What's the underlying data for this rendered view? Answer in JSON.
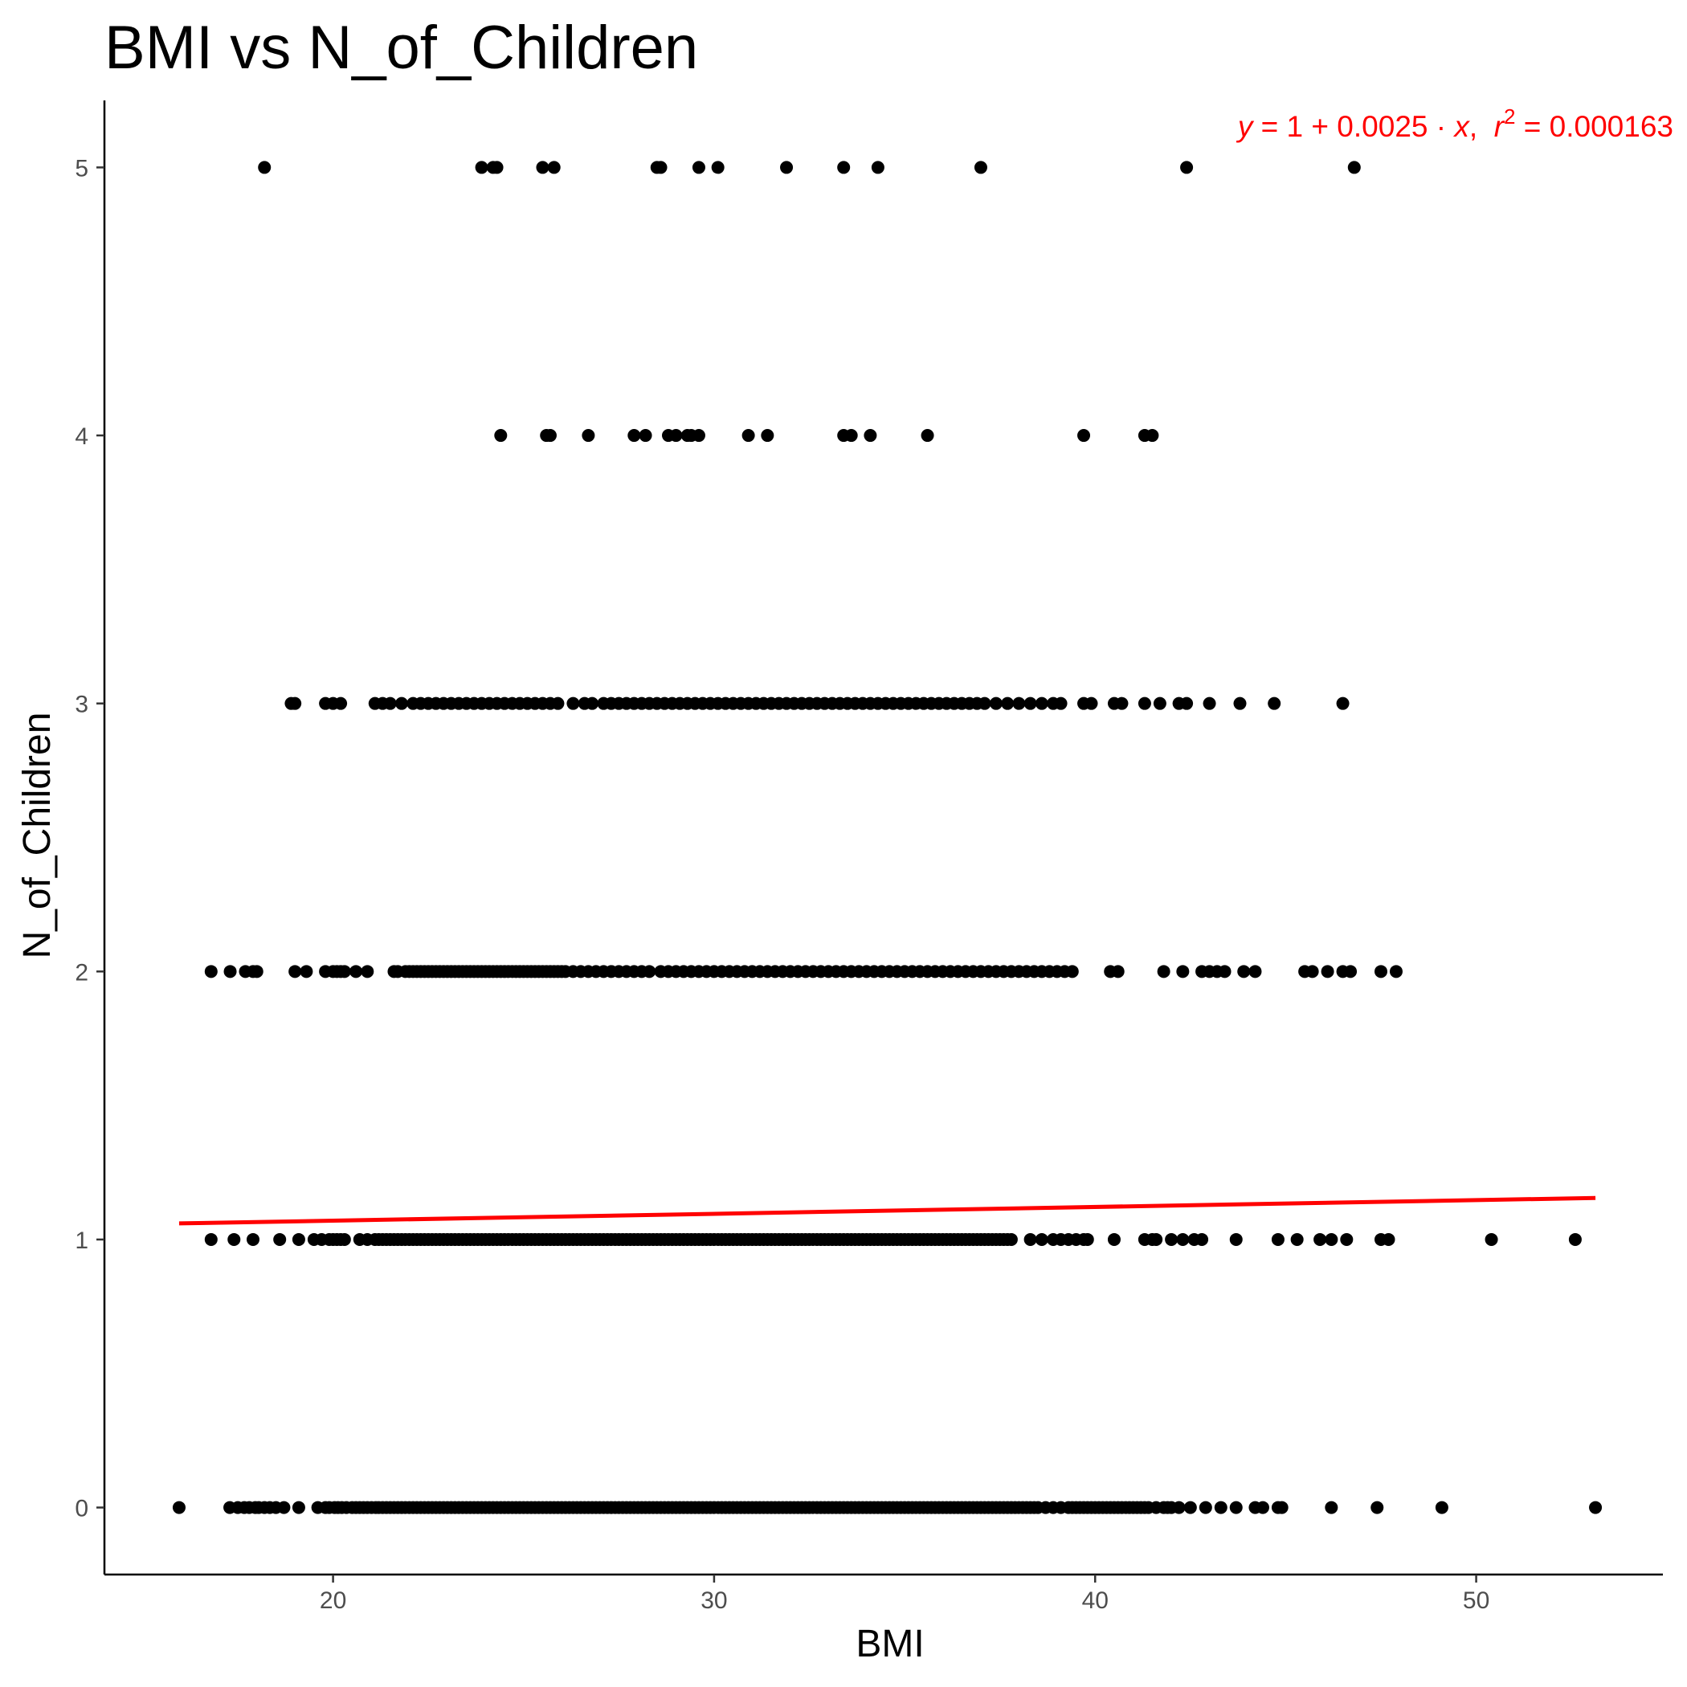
{
  "chart_data": {
    "type": "scatter",
    "title": "BMI vs N_of_Children",
    "xlabel": "BMI",
    "ylabel": "N_of_Children",
    "xlim": [
      14,
      54.9
    ],
    "ylim": [
      -0.25,
      5.25
    ],
    "x_ticks": [
      20,
      30,
      40,
      50
    ],
    "y_ticks": [
      0,
      1,
      2,
      3,
      4,
      5
    ],
    "x_tick_labels": [
      "20",
      "30",
      "40",
      "50"
    ],
    "y_tick_labels": [
      "0",
      "1",
      "2",
      "3",
      "4",
      "5"
    ],
    "grid": false,
    "point_color": "#000000",
    "regression": {
      "intercept": 1.0,
      "slope": 0.0025,
      "x_range": [
        15.96,
        53.13
      ],
      "y_range": [
        1.06,
        1.155
      ],
      "color": "#ff0000"
    },
    "equation": {
      "y": "y",
      "eq1": " = 1 + 0.0025 · ",
      "x": "x",
      "sep": ",  ",
      "r": "r",
      "sup": "2",
      "eq2": " = 0.000163",
      "color": "#ff0000"
    },
    "points": {
      "0": [
        15.96,
        17.29,
        17.5,
        17.67,
        17.8,
        17.96,
        18.05,
        18.2,
        18.34,
        18.5,
        18.71,
        19.1,
        19.6,
        19.8,
        19.9,
        20.04,
        20.13,
        20.23,
        20.35,
        20.5,
        20.6,
        20.7,
        20.8,
        20.9,
        21.01,
        21.12,
        21.2,
        21.3,
        21.4,
        21.5,
        21.6,
        21.7,
        21.8,
        21.9,
        22.0,
        22.1,
        22.2,
        22.3,
        22.4,
        22.5,
        22.6,
        22.7,
        22.8,
        22.9,
        23.0,
        23.1,
        23.2,
        23.3,
        23.4,
        23.5,
        23.6,
        23.7,
        23.8,
        23.9,
        24.0,
        24.1,
        24.2,
        24.3,
        24.4,
        24.5,
        24.6,
        24.7,
        24.8,
        24.9,
        25.0,
        25.1,
        25.2,
        25.3,
        25.4,
        25.5,
        25.6,
        25.7,
        25.8,
        25.9,
        26.0,
        26.1,
        26.2,
        26.3,
        26.4,
        26.5,
        26.6,
        26.7,
        26.8,
        26.9,
        27.0,
        27.1,
        27.2,
        27.3,
        27.4,
        27.5,
        27.6,
        27.7,
        27.8,
        27.9,
        28.0,
        28.1,
        28.2,
        28.3,
        28.4,
        28.5,
        28.6,
        28.7,
        28.8,
        28.9,
        29.0,
        29.1,
        29.2,
        29.3,
        29.4,
        29.5,
        29.6,
        29.7,
        29.8,
        29.9,
        30.0,
        30.1,
        30.2,
        30.3,
        30.4,
        30.5,
        30.6,
        30.7,
        30.8,
        30.9,
        31.0,
        31.1,
        31.2,
        31.3,
        31.4,
        31.5,
        31.6,
        31.7,
        31.8,
        31.9,
        32.0,
        32.1,
        32.2,
        32.3,
        32.4,
        32.5,
        32.6,
        32.7,
        32.8,
        32.9,
        33.0,
        33.1,
        33.2,
        33.3,
        33.4,
        33.5,
        33.6,
        33.7,
        33.8,
        33.9,
        34.0,
        34.1,
        34.2,
        34.3,
        34.4,
        34.5,
        34.6,
        34.7,
        34.8,
        34.9,
        35.0,
        35.1,
        35.2,
        35.3,
        35.4,
        35.5,
        35.6,
        35.7,
        35.8,
        35.9,
        36.0,
        36.1,
        36.2,
        36.3,
        36.4,
        36.5,
        36.6,
        36.7,
        36.8,
        36.9,
        37.0,
        37.1,
        37.2,
        37.3,
        37.4,
        37.5,
        37.6,
        37.7,
        37.8,
        37.9,
        38.0,
        38.1,
        38.2,
        38.3,
        38.4,
        38.5,
        38.7,
        38.9,
        39.1,
        39.3,
        39.4,
        39.5,
        39.6,
        39.7,
        39.8,
        39.9,
        40.0,
        40.1,
        40.2,
        40.3,
        40.4,
        40.5,
        40.6,
        40.7,
        40.8,
        40.9,
        41.0,
        41.1,
        41.2,
        41.3,
        41.4,
        41.6,
        41.8,
        41.9,
        42.0,
        42.2,
        42.5,
        42.9,
        43.3,
        43.7,
        44.2,
        44.4,
        44.8,
        44.9,
        46.2,
        47.4,
        49.1,
        53.13
      ],
      "1": [
        16.8,
        17.4,
        17.9,
        18.6,
        19.1,
        19.5,
        19.7,
        19.9,
        20.0,
        20.1,
        20.2,
        20.3,
        20.7,
        20.9,
        21.1,
        21.2,
        21.3,
        21.4,
        21.5,
        21.6,
        21.7,
        21.8,
        21.9,
        22.0,
        22.1,
        22.2,
        22.3,
        22.4,
        22.5,
        22.6,
        22.7,
        22.8,
        22.9,
        23.0,
        23.1,
        23.2,
        23.3,
        23.4,
        23.5,
        23.6,
        23.7,
        23.8,
        23.9,
        24.0,
        24.1,
        24.2,
        24.3,
        24.4,
        24.5,
        24.6,
        24.7,
        24.8,
        24.9,
        25.0,
        25.1,
        25.2,
        25.3,
        25.4,
        25.5,
        25.6,
        25.7,
        25.8,
        25.9,
        26.0,
        26.1,
        26.2,
        26.3,
        26.4,
        26.5,
        26.6,
        26.7,
        26.8,
        26.9,
        27.0,
        27.1,
        27.2,
        27.3,
        27.4,
        27.5,
        27.6,
        27.7,
        27.8,
        27.9,
        28.0,
        28.1,
        28.2,
        28.3,
        28.4,
        28.5,
        28.6,
        28.7,
        28.8,
        28.9,
        29.0,
        29.1,
        29.2,
        29.3,
        29.4,
        29.5,
        29.6,
        29.7,
        29.8,
        29.9,
        30.0,
        30.1,
        30.2,
        30.3,
        30.4,
        30.5,
        30.6,
        30.7,
        30.8,
        30.9,
        31.0,
        31.1,
        31.2,
        31.3,
        31.4,
        31.5,
        31.6,
        31.7,
        31.8,
        31.9,
        32.0,
        32.1,
        32.2,
        32.3,
        32.4,
        32.5,
        32.6,
        32.7,
        32.8,
        32.9,
        33.0,
        33.1,
        33.2,
        33.3,
        33.4,
        33.5,
        33.6,
        33.7,
        33.8,
        33.9,
        34.0,
        34.1,
        34.2,
        34.3,
        34.4,
        34.5,
        34.6,
        34.7,
        34.8,
        34.9,
        35.0,
        35.1,
        35.2,
        35.3,
        35.4,
        35.5,
        35.6,
        35.7,
        35.8,
        35.9,
        36.0,
        36.1,
        36.2,
        36.3,
        36.4,
        36.5,
        36.6,
        36.7,
        36.8,
        36.9,
        37.0,
        37.1,
        37.2,
        37.3,
        37.4,
        37.5,
        37.6,
        37.7,
        37.8,
        38.3,
        38.6,
        38.9,
        39.1,
        39.3,
        39.5,
        39.7,
        39.8,
        40.5,
        41.3,
        41.5,
        41.6,
        42.0,
        42.3,
        42.6,
        42.8,
        43.7,
        44.8,
        45.3,
        45.9,
        46.2,
        46.6,
        47.5,
        47.7,
        50.4,
        52.6
      ],
      "2": [
        16.8,
        17.3,
        17.7,
        17.9,
        18.0,
        19.0,
        19.3,
        19.8,
        20.0,
        20.1,
        20.2,
        20.3,
        20.6,
        20.9,
        21.6,
        21.7,
        21.9,
        22.0,
        22.1,
        22.2,
        22.3,
        22.4,
        22.5,
        22.6,
        22.7,
        22.8,
        22.9,
        23.0,
        23.1,
        23.2,
        23.3,
        23.4,
        23.5,
        23.6,
        23.7,
        23.8,
        23.9,
        24.0,
        24.1,
        24.2,
        24.3,
        24.4,
        24.5,
        24.6,
        24.7,
        24.8,
        24.9,
        25.0,
        25.1,
        25.2,
        25.3,
        25.4,
        25.5,
        25.6,
        25.7,
        25.8,
        25.9,
        26.0,
        26.1,
        26.3,
        26.5,
        26.7,
        26.9,
        27.1,
        27.3,
        27.5,
        27.7,
        27.9,
        28.1,
        28.3,
        28.6,
        28.8,
        29.0,
        29.2,
        29.4,
        29.6,
        29.8,
        30.0,
        30.2,
        30.4,
        30.6,
        30.8,
        31.0,
        31.2,
        31.4,
        31.6,
        31.8,
        32.0,
        32.2,
        32.4,
        32.6,
        32.8,
        33.0,
        33.2,
        33.4,
        33.6,
        33.8,
        34.0,
        34.2,
        34.4,
        34.6,
        34.8,
        35.0,
        35.2,
        35.4,
        35.6,
        35.8,
        36.0,
        36.2,
        36.4,
        36.6,
        36.8,
        37.0,
        37.2,
        37.4,
        37.6,
        37.8,
        38.0,
        38.2,
        38.4,
        38.6,
        38.8,
        39.0,
        39.2,
        39.4,
        40.4,
        40.6,
        41.8,
        42.3,
        42.8,
        43.0,
        43.2,
        43.4,
        43.9,
        44.2,
        45.5,
        45.7,
        46.1,
        46.5,
        46.7,
        47.5,
        47.9
      ],
      "3": [
        18.9,
        19.0,
        19.8,
        20.0,
        20.2,
        21.1,
        21.3,
        21.5,
        21.8,
        22.1,
        22.3,
        22.5,
        22.7,
        22.9,
        23.1,
        23.3,
        23.5,
        23.7,
        23.9,
        24.1,
        24.3,
        24.5,
        24.7,
        24.9,
        25.1,
        25.3,
        25.5,
        25.7,
        25.9,
        26.3,
        26.6,
        26.8,
        27.1,
        27.3,
        27.5,
        27.7,
        27.9,
        28.1,
        28.3,
        28.5,
        28.7,
        28.9,
        29.1,
        29.3,
        29.5,
        29.7,
        29.9,
        30.1,
        30.3,
        30.5,
        30.7,
        30.9,
        31.1,
        31.3,
        31.5,
        31.7,
        31.9,
        32.1,
        32.3,
        32.5,
        32.7,
        32.9,
        33.1,
        33.3,
        33.5,
        33.7,
        33.9,
        34.1,
        34.3,
        34.5,
        34.7,
        34.9,
        35.1,
        35.3,
        35.5,
        35.7,
        35.9,
        36.1,
        36.3,
        36.5,
        36.7,
        36.9,
        37.1,
        37.4,
        37.7,
        38.0,
        38.3,
        38.6,
        38.9,
        39.1,
        39.7,
        39.9,
        40.5,
        40.7,
        41.3,
        41.7,
        42.2,
        42.4,
        43.0,
        43.8,
        44.7,
        46.5
      ],
      "4": [
        24.4,
        25.6,
        25.7,
        26.7,
        27.9,
        28.2,
        28.8,
        29.0,
        29.3,
        29.4,
        29.6,
        30.9,
        31.4,
        33.4,
        33.6,
        34.1,
        35.6,
        39.7,
        41.3,
        41.5
      ],
      "5": [
        18.2,
        23.9,
        24.2,
        24.3,
        25.5,
        25.8,
        28.5,
        28.6,
        29.6,
        30.1,
        31.9,
        33.4,
        34.3,
        37.0,
        42.4,
        46.8
      ]
    }
  }
}
